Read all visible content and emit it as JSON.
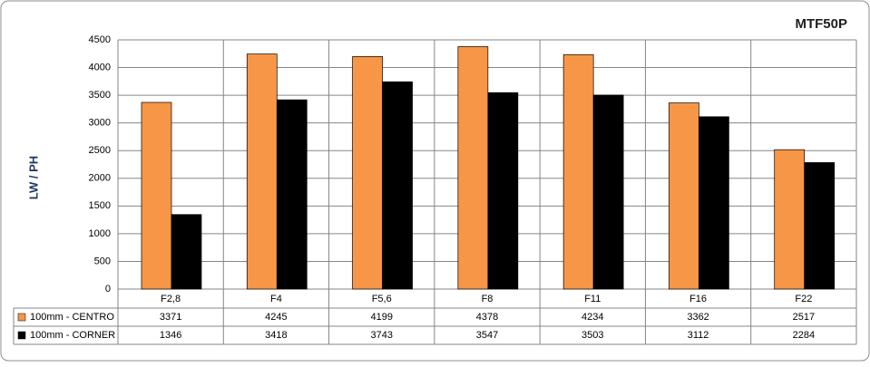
{
  "chart_data": {
    "type": "bar",
    "title": "MTF50P",
    "y_label": "LW / PH",
    "categories": [
      "F2,8",
      "F4",
      "F5,6",
      "F8",
      "F11",
      "F16",
      "F22"
    ],
    "series": [
      {
        "name": "100mm - CENTRO",
        "color": "#f79646",
        "values": [
          3371,
          4245,
          4199,
          4378,
          4234,
          3362,
          2517
        ]
      },
      {
        "name": "100mm - CORNER",
        "color": "#000000",
        "values": [
          1346,
          3418,
          3743,
          3547,
          3503,
          3112,
          2284
        ]
      }
    ],
    "ylim": [
      0,
      4500
    ],
    "yticks": [
      0,
      500,
      1000,
      1500,
      2000,
      2500,
      3000,
      3500,
      4000,
      4500
    ],
    "grid": true
  }
}
